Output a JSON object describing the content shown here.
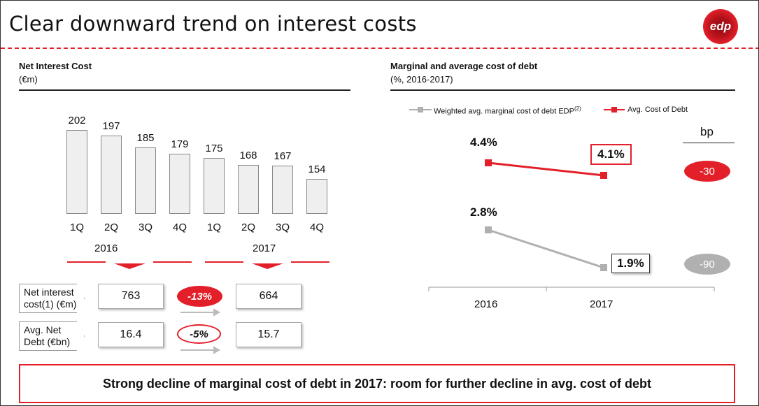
{
  "title": "Clear downward trend on interest costs",
  "logo_text": "edp",
  "colors": {
    "accent": "#e3202a",
    "grey": "#b0b0b0"
  },
  "left": {
    "heading": "Net Interest Cost",
    "unit": "(€m)",
    "rows": [
      {
        "label1": "Net interest",
        "label2": "cost(1) (€m)",
        "v2016": "763",
        "change": "-13%",
        "v2017": "664"
      },
      {
        "label1": "Avg. Net",
        "label2": "Debt (€bn)",
        "v2016": "16.4",
        "change": "-5%",
        "v2017": "15.7"
      }
    ]
  },
  "right": {
    "heading": "Marginal and average cost of debt",
    "unit": "(%, 2016-2017)",
    "bp_label": "bp",
    "bp_avg": "-30",
    "bp_marginal": "-90"
  },
  "bottom_message": "Strong decline of marginal cost of debt in 2017: room for further decline in avg. cost of debt",
  "chart_data": [
    {
      "type": "bar",
      "title": "Net Interest Cost",
      "ylabel": "€m",
      "categories": [
        "1Q",
        "2Q",
        "3Q",
        "4Q",
        "1Q",
        "2Q",
        "3Q",
        "4Q"
      ],
      "groups": [
        "2016",
        "2017"
      ],
      "values": [
        202,
        197,
        185,
        179,
        175,
        168,
        167,
        154
      ],
      "labels": [
        "202",
        "197",
        "185",
        "179",
        "175",
        "168",
        "167",
        "154"
      ]
    },
    {
      "type": "line",
      "title": "Marginal and average cost of debt",
      "x": [
        "2016",
        "2017"
      ],
      "series": [
        {
          "name": "Weighted avg. marginal cost of debt EDP",
          "note": "(2)",
          "values": [
            2.8,
            1.9
          ],
          "labels": [
            "2.8%",
            "1.9%"
          ],
          "color": "#b0b0b0"
        },
        {
          "name": "Avg. Cost of Debt",
          "values": [
            4.4,
            4.1
          ],
          "labels": [
            "4.4%",
            "4.1%"
          ],
          "color": "#e3202a"
        }
      ]
    }
  ]
}
